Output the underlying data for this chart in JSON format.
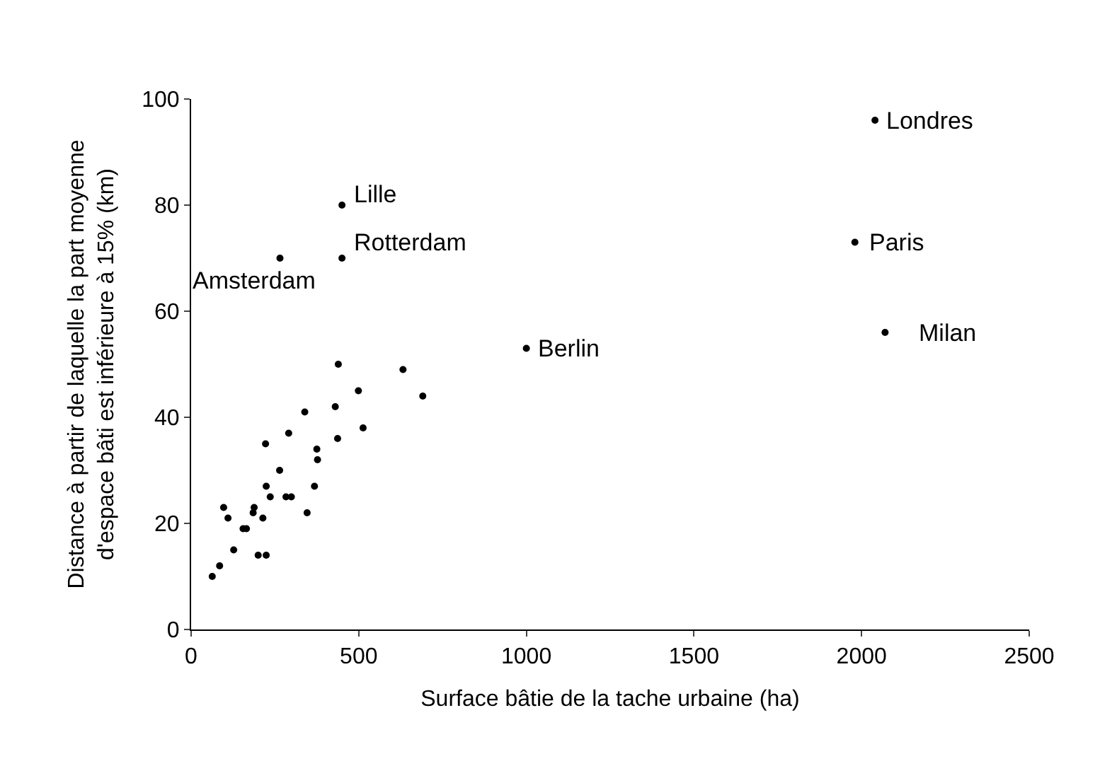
{
  "chart_data": {
    "type": "scatter",
    "xlabel": "Surface bâtie de la tache urbaine (ha)",
    "ylabel": "Distance à partir de laquelle la part moyenne\nd'espace bâti est inférieure à 15% (km)",
    "xlim": [
      0,
      2500
    ],
    "xticks": [
      0,
      500,
      1000,
      1500,
      2000,
      2500
    ],
    "ylim": [
      0,
      100
    ],
    "yticks": [
      0,
      20,
      40,
      60,
      80,
      100
    ],
    "marker": "circle",
    "series": [
      {
        "color": "#000000",
        "x": [
          439,
          632,
          499,
          691,
          339,
          430,
          513,
          291,
          222,
          437,
          375,
          377,
          264,
          224,
          236,
          283,
          299,
          368,
          346,
          97,
          110,
          188,
          185,
          214,
          155,
          165,
          127,
          200,
          224,
          85,
          63,
          450,
          450,
          265,
          1000,
          2040,
          1980,
          2070
        ],
        "values": [
          50,
          49,
          45,
          44,
          41,
          42,
          38,
          37,
          35,
          36,
          34,
          32,
          30,
          27,
          25,
          25,
          25,
          27,
          22,
          23,
          21,
          23,
          22,
          21,
          19,
          19,
          15,
          14,
          14,
          12,
          10,
          80,
          70,
          70,
          53,
          96,
          73,
          56
        ]
      }
    ],
    "annotations": [
      {
        "text": "Lille",
        "x": 450,
        "y": 80
      },
      {
        "text": "Rotterdam",
        "x": 450,
        "y": 70
      },
      {
        "text": "Amsterdam",
        "x": 265,
        "y": 70
      },
      {
        "text": "Berlin",
        "x": 1000,
        "y": 53
      },
      {
        "text": "Londres",
        "x": 2040,
        "y": 96
      },
      {
        "text": "Paris",
        "x": 1980,
        "y": 73
      },
      {
        "text": "Milan",
        "x": 2070,
        "y": 56
      }
    ]
  }
}
